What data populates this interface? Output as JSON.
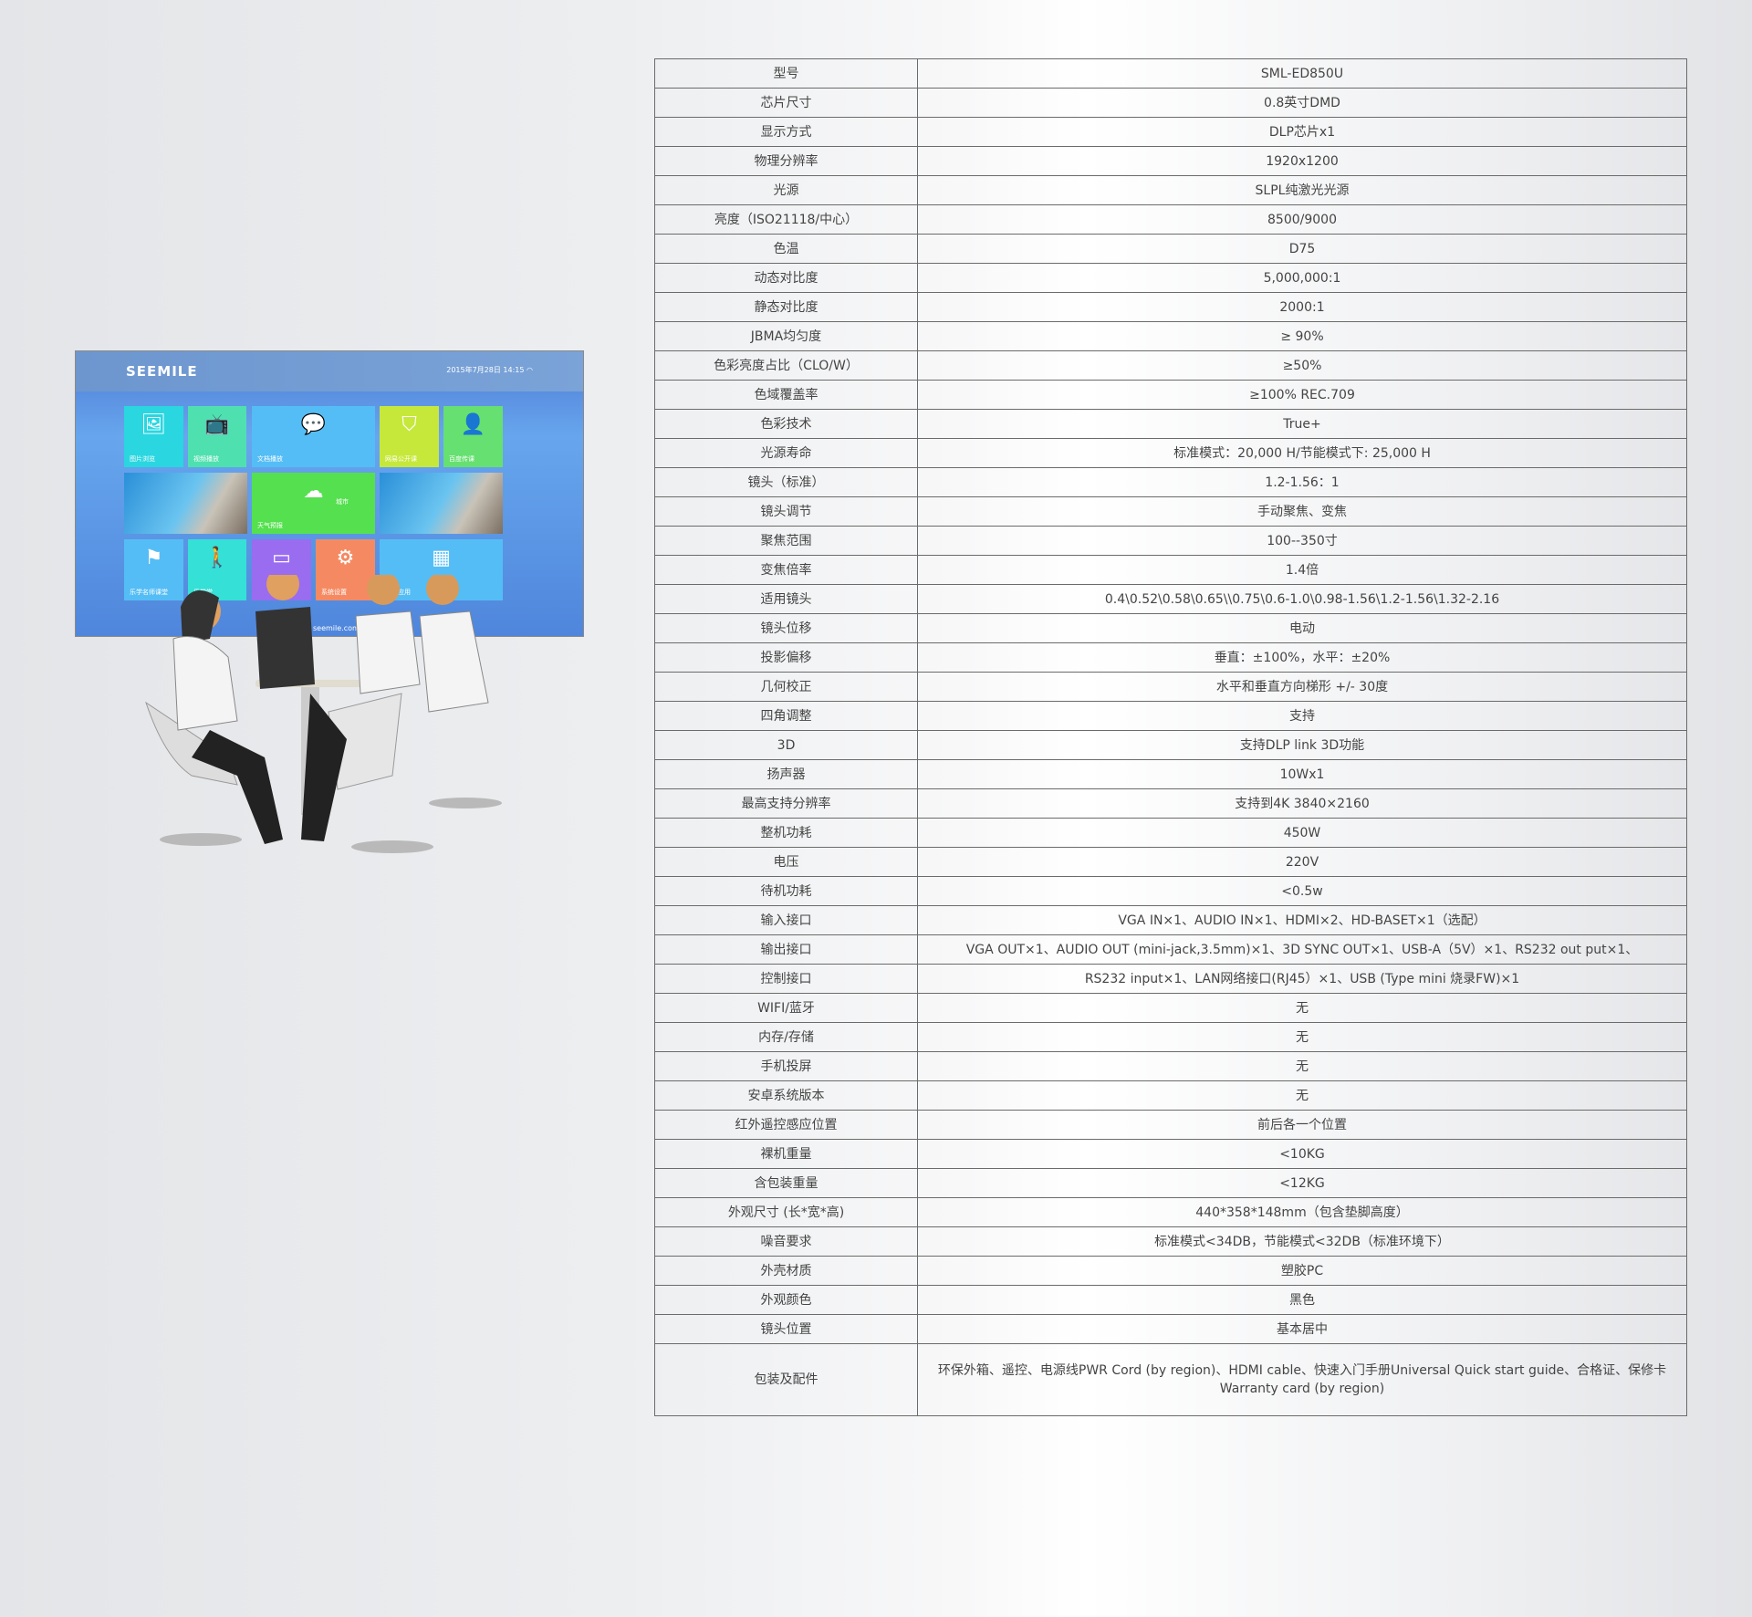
{
  "illustration": {
    "brand": "SEEMILE",
    "datetime": "2015年7月28日  14:15",
    "url": "seemile.com.cn",
    "tiles": [
      {
        "label": "图片浏览",
        "icon": "image-icon",
        "color": "#2ad6e0"
      },
      {
        "label": "视频播放",
        "icon": "tv-icon",
        "color": "#4fe0b0"
      },
      {
        "label": "文档播放",
        "icon": "chat-document-icon",
        "color": "#55bdf5"
      },
      {
        "label": "网易公开课",
        "icon": "easel-icon",
        "color": "#c6e83a"
      },
      {
        "label": "百度传课",
        "icon": "teacher-icon",
        "color": "#66e070"
      },
      {
        "label": "",
        "icon": "projector-photo",
        "color": "#3d8fd0"
      },
      {
        "label": "天气预报",
        "icon": "weather-cloud-sun-icon",
        "color": "#55e04f",
        "extra": "城市"
      },
      {
        "label": "",
        "icon": "exhibition-photo",
        "color": "#3a6fb8"
      },
      {
        "label": "乐学名师课堂",
        "icon": "presentation-icon",
        "color": "#55bdf5"
      },
      {
        "label": "乐学堂",
        "icon": "student-walk-icon",
        "color": "#35e0d6"
      },
      {
        "label": "",
        "icon": "layout-icon",
        "color": "#9a6cf0"
      },
      {
        "label": "系统设置",
        "icon": "gear-icon",
        "color": "#f58a62"
      },
      {
        "label": "全部应用",
        "icon": "grid-apps-icon",
        "color": "#55bdf5"
      }
    ]
  },
  "specs": [
    {
      "k": "型号",
      "v": "SML-ED850U"
    },
    {
      "k": "芯片尺寸",
      "v": "0.8英寸DMD"
    },
    {
      "k": "显示方式",
      "v": "DLP芯片x1"
    },
    {
      "k": "物理分辨率",
      "v": "1920x1200"
    },
    {
      "k": "光源",
      "v": "SLPL纯激光光源"
    },
    {
      "k": "亮度（ISO21118/中心）",
      "v": "8500/9000"
    },
    {
      "k": "色温",
      "v": "D75"
    },
    {
      "k": "动态对比度",
      "v": "5,000,000:1"
    },
    {
      "k": "静态对比度",
      "v": "2000:1"
    },
    {
      "k": "JBMA均匀度",
      "v": "≥ 90%"
    },
    {
      "k": "色彩亮度占比（CLO/W）",
      "v": "≥50%"
    },
    {
      "k": "色域覆盖率",
      "v": "≥100%  REC.709"
    },
    {
      "k": "色彩技术",
      "v": "True+"
    },
    {
      "k": "光源寿命",
      "v": "标准模式：20,000 H/节能模式下: 25,000 H"
    },
    {
      "k": "镜头（标准）",
      "v": "1.2-1.56：1"
    },
    {
      "k": "镜头调节",
      "v": "手动聚焦、变焦"
    },
    {
      "k": "聚焦范围",
      "v": "100--350寸"
    },
    {
      "k": "变焦倍率",
      "v": "1.4倍"
    },
    {
      "k": "适用镜头",
      "v": "0.4\\0.52\\0.58\\0.65\\\\0.75\\0.6-1.0\\0.98-1.56\\1.2-1.56\\1.32-2.16"
    },
    {
      "k": "镜头位移",
      "v": "电动"
    },
    {
      "k": "投影偏移",
      "v": "垂直：±100%，水平：±20%"
    },
    {
      "k": "几何校正",
      "v": "水平和垂直方向梯形 +/- 30度"
    },
    {
      "k": "四角调整",
      "v": "支持"
    },
    {
      "k": "3D",
      "v": "支持DLP link 3D功能"
    },
    {
      "k": "扬声器",
      "v": "10Wx1"
    },
    {
      "k": "最高支持分辨率",
      "v": "支持到4K 3840×2160"
    },
    {
      "k": "整机功耗",
      "v": "450W"
    },
    {
      "k": "电压",
      "v": "220V"
    },
    {
      "k": "待机功耗",
      "v": "<0.5w"
    },
    {
      "k": "输入接口",
      "v": "VGA IN×1、AUDIO IN×1、HDMI×2、HD-BASET×1（选配）"
    },
    {
      "k": "输出接口",
      "v": "VGA OUT×1、AUDIO OUT (mini-jack,3.5mm)×1、3D SYNC OUT×1、USB-A（5V）×1、RS232 out put×1、"
    },
    {
      "k": "控制接口",
      "v": "RS232 input×1、LAN网络接口(RJ45）×1、USB (Type mini 烧录FW)×1"
    },
    {
      "k": "WIFI/蓝牙",
      "v": "无"
    },
    {
      "k": "内存/存储",
      "v": "无"
    },
    {
      "k": "手机投屏",
      "v": "无"
    },
    {
      "k": "安卓系统版本",
      "v": "无"
    },
    {
      "k": "红外遥控感应位置",
      "v": "前后各一个位置"
    },
    {
      "k": "裸机重量",
      "v": "<10KG"
    },
    {
      "k": "含包装重量",
      "v": "<12KG"
    },
    {
      "k": "外观尺寸 (长*宽*高)",
      "v": "440*358*148mm（包含垫脚高度）"
    },
    {
      "k": "噪音要求",
      "v": "标准模式<34DB，节能模式<32DB（标准环境下）"
    },
    {
      "k": "外壳材质",
      "v": "塑胶PC"
    },
    {
      "k": "外观颜色",
      "v": "黑色"
    },
    {
      "k": "镜头位置",
      "v": "基本居中"
    },
    {
      "k": "包装及配件",
      "v": "环保外箱、遥控、电源线PWR Cord (by region)、HDMI cable、快速入门手册Universal Quick start guide、合格证、保修卡 Warranty card (by region)"
    }
  ]
}
